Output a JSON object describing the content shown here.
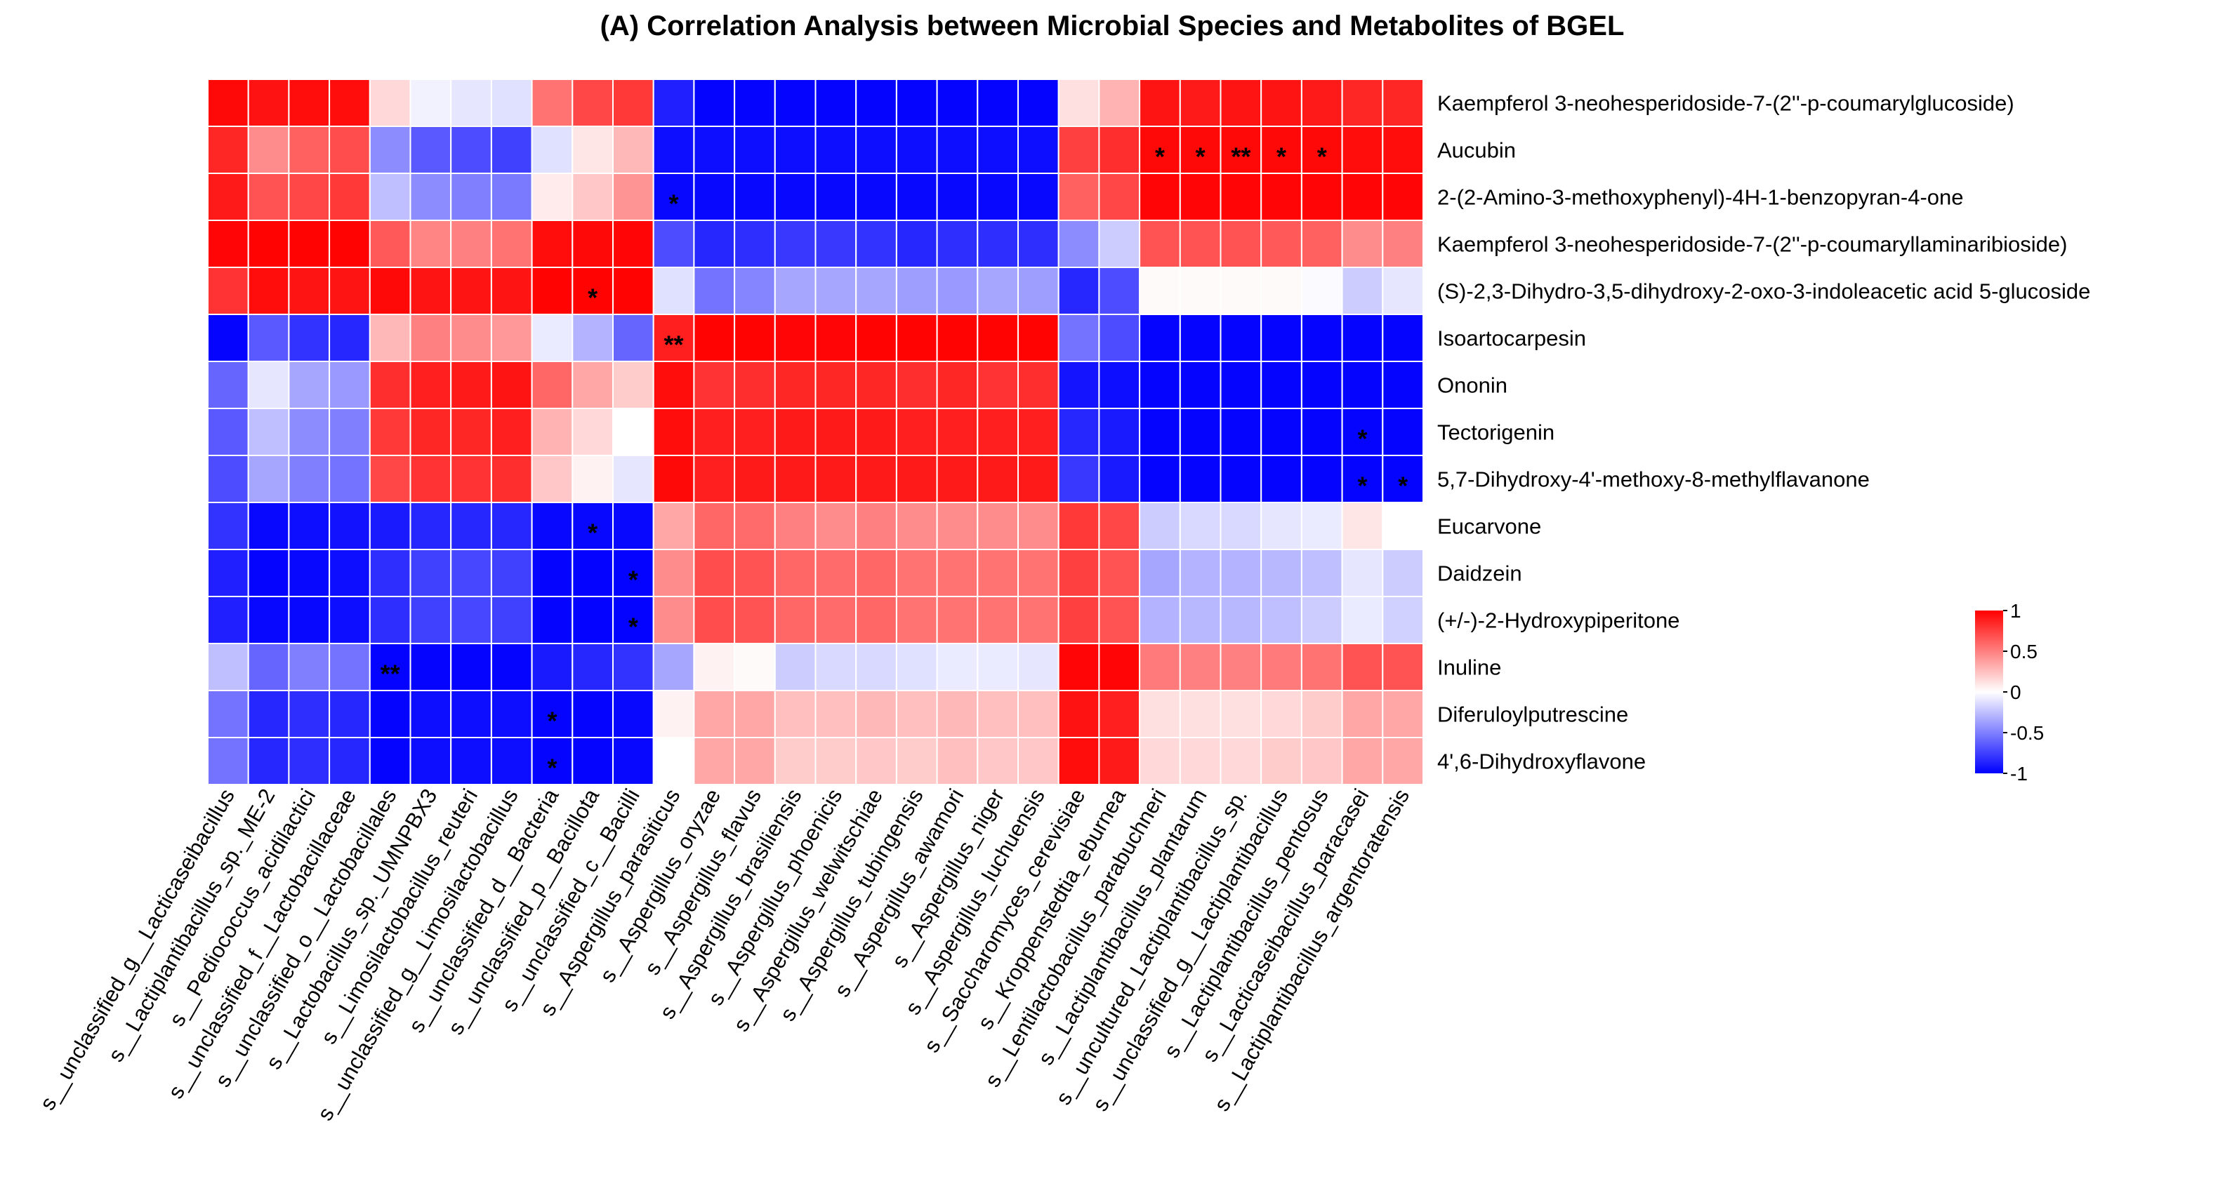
{
  "chart_data": {
    "type": "heatmap",
    "title": "(A) Correlation Analysis between Microbial Species and Metabolites of BGEL",
    "rows": [
      "Kaempferol 3-neohesperidoside-7-(2''-p-coumarylglucoside)",
      "Aucubin",
      "2-(2-Amino-3-methoxyphenyl)-4H-1-benzopyran-4-one",
      "Kaempferol 3-neohesperidoside-7-(2''-p-coumaryllaminaribioside)",
      "(S)-2,3-Dihydro-3,5-dihydroxy-2-oxo-3-indoleacetic acid 5-glucoside",
      "Isoartocarpesin",
      "Ononin",
      "Tectorigenin",
      "5,7-Dihydroxy-4'-methoxy-8-methylflavanone",
      "Eucarvone",
      "Daidzein",
      "(+/-)-2-Hydroxypiperitone",
      "Inuline",
      "Diferuloylputrescine",
      "4',6-Dihydroxyflavone"
    ],
    "columns": [
      "s__unclassified_g__Lacticaseibacillus",
      "s__Lactiplantibacillus_sp._ME-2",
      "s__Pediococcus_acidilactici",
      "s__unclassified_f__Lactobacillaceae",
      "s__unclassified_o__Lactobacillales",
      "s__Lactobacillus_sp._UMNPBX3",
      "s__Limosilactobacillus_reuteri",
      "s__unclassified_g__Limosilactobacillus",
      "s__unclassified_d__Bacteria",
      "s__unclassified_p__Bacillota",
      "s__unclassified_c__Bacilli",
      "s__Aspergillus_parasiticus",
      "s__Aspergillus_oryzae",
      "s__Aspergillus_flavus",
      "s__Aspergillus_brasiliensis",
      "s__Aspergillus_phoenicis",
      "s__Aspergillus_welwitschiae",
      "s__Aspergillus_tubingensis",
      "s__Aspergillus_awamori",
      "s__Aspergillus_niger",
      "s__Aspergillus_luchuensis",
      "s__Saccharomyces_cerevisiae",
      "s__Kroppenstedtia_eburnea",
      "s__Lentilactobacillus_parabuchneri",
      "s__Lactiplantibacillus_plantarum",
      "s__uncultured_Lactiplantibacillus_sp.",
      "s__unclassified_g__Lactiplantibacillus",
      "s__Lactiplantibacillus_pentosus",
      "s__Lacticaseibacillus_paracasei",
      "s__Lactiplantibacillus_argentoratensis"
    ],
    "values": [
      [
        0.97,
        0.93,
        0.95,
        0.95,
        0.15,
        -0.05,
        -0.1,
        -0.12,
        0.55,
        0.72,
        0.78,
        -0.88,
        -0.98,
        -0.98,
        -0.98,
        -0.98,
        -0.98,
        -0.98,
        -0.98,
        -0.98,
        -0.98,
        0.12,
        0.3,
        0.92,
        0.9,
        0.92,
        0.92,
        0.9,
        0.85,
        0.85
      ],
      [
        0.85,
        0.45,
        0.62,
        0.7,
        -0.45,
        -0.65,
        -0.7,
        -0.75,
        -0.12,
        0.1,
        0.28,
        -0.95,
        -0.95,
        -0.95,
        -0.95,
        -0.95,
        -0.95,
        -0.95,
        -0.95,
        -0.95,
        -0.95,
        0.75,
        0.82,
        0.97,
        0.97,
        0.97,
        0.97,
        0.97,
        0.95,
        0.95
      ],
      [
        0.9,
        0.68,
        0.72,
        0.78,
        -0.25,
        -0.45,
        -0.5,
        -0.52,
        0.08,
        0.22,
        0.42,
        -0.97,
        -0.97,
        -0.97,
        -0.97,
        -0.97,
        -0.97,
        -0.97,
        -0.97,
        -0.97,
        -0.97,
        0.62,
        0.72,
        0.98,
        0.98,
        0.98,
        0.98,
        0.98,
        0.98,
        0.98
      ],
      [
        0.98,
        0.99,
        0.99,
        0.99,
        0.65,
        0.48,
        0.5,
        0.55,
        0.95,
        0.97,
        0.98,
        -0.7,
        -0.85,
        -0.82,
        -0.78,
        -0.78,
        -0.8,
        -0.85,
        -0.82,
        -0.82,
        -0.82,
        -0.45,
        -0.2,
        0.68,
        0.68,
        0.68,
        0.65,
        0.62,
        0.45,
        0.5
      ],
      [
        0.8,
        0.95,
        0.92,
        0.92,
        0.97,
        0.92,
        0.92,
        0.92,
        0.99,
        0.99,
        0.99,
        -0.12,
        -0.55,
        -0.48,
        -0.35,
        -0.35,
        -0.35,
        -0.38,
        -0.4,
        -0.35,
        -0.38,
        -0.85,
        -0.7,
        0.02,
        0.02,
        0.02,
        0.02,
        -0.02,
        -0.2,
        -0.1
      ],
      [
        -0.98,
        -0.65,
        -0.8,
        -0.85,
        0.28,
        0.5,
        0.45,
        0.4,
        -0.08,
        -0.3,
        -0.6,
        0.88,
        0.99,
        0.99,
        0.98,
        0.98,
        0.99,
        0.99,
        0.99,
        0.99,
        0.99,
        -0.55,
        -0.7,
        -0.98,
        -0.98,
        -0.98,
        -0.98,
        -0.98,
        -0.98,
        -0.98
      ],
      [
        -0.6,
        -0.1,
        -0.35,
        -0.4,
        0.82,
        0.88,
        0.9,
        0.92,
        0.6,
        0.35,
        0.2,
        0.95,
        0.8,
        0.82,
        0.85,
        0.85,
        0.85,
        0.82,
        0.85,
        0.8,
        0.82,
        -0.92,
        -0.95,
        -0.98,
        -0.98,
        -0.98,
        -0.98,
        -0.98,
        -0.98,
        -0.98
      ],
      [
        -0.65,
        -0.25,
        -0.45,
        -0.5,
        0.78,
        0.85,
        0.85,
        0.88,
        0.3,
        0.15,
        0.0,
        0.95,
        0.88,
        0.88,
        0.9,
        0.9,
        0.9,
        0.88,
        0.88,
        0.88,
        0.88,
        -0.85,
        -0.9,
        -0.98,
        -0.98,
        -0.98,
        -0.98,
        -0.98,
        -0.98,
        -0.98
      ],
      [
        -0.7,
        -0.35,
        -0.5,
        -0.55,
        0.72,
        0.8,
        0.8,
        0.82,
        0.22,
        0.05,
        -0.1,
        0.97,
        0.88,
        0.9,
        0.9,
        0.9,
        0.9,
        0.9,
        0.9,
        0.9,
        0.9,
        -0.78,
        -0.9,
        -0.98,
        -0.98,
        -0.98,
        -0.98,
        -0.98,
        -0.98,
        -0.98
      ],
      [
        -0.8,
        -0.97,
        -0.95,
        -0.93,
        -0.9,
        -0.85,
        -0.85,
        -0.85,
        -0.97,
        -0.97,
        -0.97,
        0.35,
        0.6,
        0.58,
        0.5,
        0.45,
        0.5,
        0.45,
        0.45,
        0.45,
        0.45,
        0.78,
        0.72,
        -0.2,
        -0.15,
        -0.15,
        -0.1,
        -0.08,
        0.1,
        0.0
      ],
      [
        -0.88,
        -0.98,
        -0.97,
        -0.95,
        -0.82,
        -0.75,
        -0.72,
        -0.75,
        -0.98,
        -0.99,
        -0.99,
        0.45,
        0.7,
        0.68,
        0.6,
        0.58,
        0.6,
        0.55,
        0.55,
        0.55,
        0.55,
        0.75,
        0.68,
        -0.35,
        -0.3,
        -0.3,
        -0.28,
        -0.25,
        -0.1,
        -0.2
      ],
      [
        -0.88,
        -0.97,
        -0.97,
        -0.95,
        -0.82,
        -0.75,
        -0.72,
        -0.75,
        -0.98,
        -0.99,
        -0.99,
        0.45,
        0.7,
        0.68,
        0.6,
        0.58,
        0.6,
        0.55,
        0.55,
        0.55,
        0.55,
        0.75,
        0.68,
        -0.3,
        -0.28,
        -0.28,
        -0.25,
        -0.2,
        -0.08,
        -0.18
      ],
      [
        -0.25,
        -0.6,
        -0.5,
        -0.55,
        -0.99,
        -0.98,
        -0.98,
        -0.98,
        -0.9,
        -0.85,
        -0.8,
        -0.35,
        0.05,
        0.02,
        -0.2,
        -0.15,
        -0.15,
        -0.12,
        -0.08,
        -0.08,
        -0.1,
        0.98,
        0.98,
        0.52,
        0.5,
        0.5,
        0.52,
        0.55,
        0.68,
        0.68
      ],
      [
        -0.55,
        -0.85,
        -0.82,
        -0.85,
        -0.98,
        -0.95,
        -0.95,
        -0.95,
        -0.98,
        -0.98,
        -0.97,
        0.05,
        0.35,
        0.35,
        0.25,
        0.25,
        0.28,
        0.25,
        0.28,
        0.25,
        0.25,
        0.93,
        0.88,
        0.12,
        0.12,
        0.12,
        0.15,
        0.2,
        0.35,
        0.35
      ],
      [
        -0.55,
        -0.85,
        -0.82,
        -0.85,
        -0.98,
        -0.95,
        -0.95,
        -0.95,
        -0.98,
        -0.98,
        -0.97,
        0.0,
        0.35,
        0.35,
        0.2,
        0.2,
        0.22,
        0.2,
        0.25,
        0.22,
        0.22,
        0.95,
        0.9,
        0.15,
        0.15,
        0.15,
        0.2,
        0.22,
        0.35,
        0.35
      ]
    ],
    "significance": [
      {
        "row": 1,
        "col": 23,
        "label": "*"
      },
      {
        "row": 1,
        "col": 24,
        "label": "*"
      },
      {
        "row": 1,
        "col": 25,
        "label": "**"
      },
      {
        "row": 1,
        "col": 26,
        "label": "*"
      },
      {
        "row": 1,
        "col": 27,
        "label": "*"
      },
      {
        "row": 2,
        "col": 11,
        "label": "*"
      },
      {
        "row": 4,
        "col": 9,
        "label": "*"
      },
      {
        "row": 5,
        "col": 11,
        "label": "**"
      },
      {
        "row": 7,
        "col": 28,
        "label": "*"
      },
      {
        "row": 8,
        "col": 28,
        "label": "*"
      },
      {
        "row": 8,
        "col": 29,
        "label": "*"
      },
      {
        "row": 9,
        "col": 9,
        "label": "*"
      },
      {
        "row": 10,
        "col": 10,
        "label": "*"
      },
      {
        "row": 11,
        "col": 10,
        "label": "*"
      },
      {
        "row": 12,
        "col": 4,
        "label": "**"
      },
      {
        "row": 13,
        "col": 8,
        "label": "*"
      },
      {
        "row": 14,
        "col": 8,
        "label": "*"
      }
    ],
    "color_scale": {
      "min": -1,
      "max": 1,
      "low": "#0000ff",
      "mid": "#ffffff",
      "high": "#ff0000"
    },
    "legend": {
      "placement": "right",
      "ticks": [
        1,
        0.5,
        0,
        -0.5,
        -1
      ],
      "tick_labels": [
        "1",
        "0.5",
        "0",
        "-0.5",
        "-1"
      ]
    },
    "grid": true
  }
}
